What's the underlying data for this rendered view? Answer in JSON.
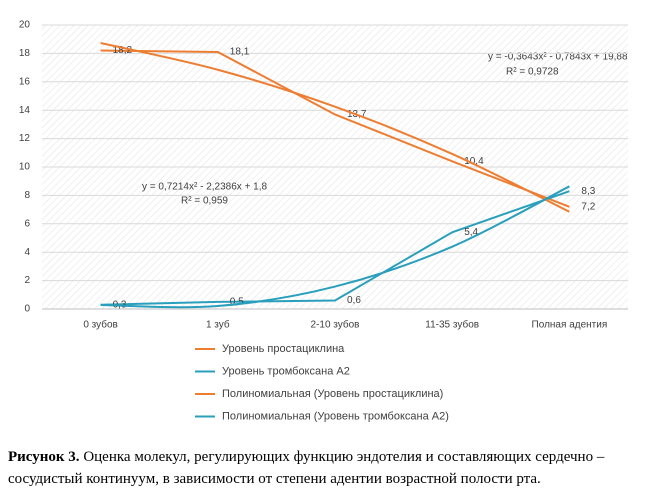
{
  "chart_data": {
    "type": "line",
    "categories": [
      "0 зубов",
      "1 зуб",
      "2-10 зубов",
      "11-35 зубов",
      "Полная адентия"
    ],
    "series": [
      {
        "name": "Уровень простациклина",
        "color": "#ed7d31",
        "values": [
          18.2,
          18.1,
          13.7,
          10.4,
          7.2
        ],
        "value_labels": [
          "18,2",
          "18,1",
          "13,7",
          "10,4",
          "7,2"
        ]
      },
      {
        "name": "Уровень тромбоксана А2",
        "color": "#2a9fbc",
        "values": [
          0.3,
          0.5,
          0.6,
          5.4,
          8.3
        ],
        "value_labels": [
          "0,3",
          "0,5",
          "0,6",
          "5,4",
          "8,3"
        ]
      },
      {
        "name": "Полиномиальная (Уровень простациклина)",
        "color": "#ed7d31",
        "trend": true,
        "values": [
          18.73,
          16.85,
          14.25,
          10.92,
          6.85
        ]
      },
      {
        "name": "Полиномиальная (Уровень тромбоксана А2)",
        "color": "#2a9fbc",
        "trend": true,
        "values": [
          0.28,
          0.21,
          1.58,
          4.39,
          8.64
        ]
      }
    ],
    "annotations": [
      "y = -0,3643x² - 0,7843x + 19,88",
      "R² = 0,9728",
      "y = 0,7214x² - 2,2386x + 1,8",
      "R² = 0,959"
    ],
    "ylim": [
      0,
      20
    ],
    "yticks": [
      0,
      2,
      4,
      6,
      8,
      10,
      12,
      14,
      16,
      18,
      20
    ],
    "grid": true,
    "legend": "bottom"
  },
  "caption": {
    "label": "Рисунок 3.",
    "text": "Оценка молекул, регулирующих функцию эндотелия и составляющих сердечно – сосудистый континуум, в зависимости от степени адентии возрастной полости рта."
  }
}
